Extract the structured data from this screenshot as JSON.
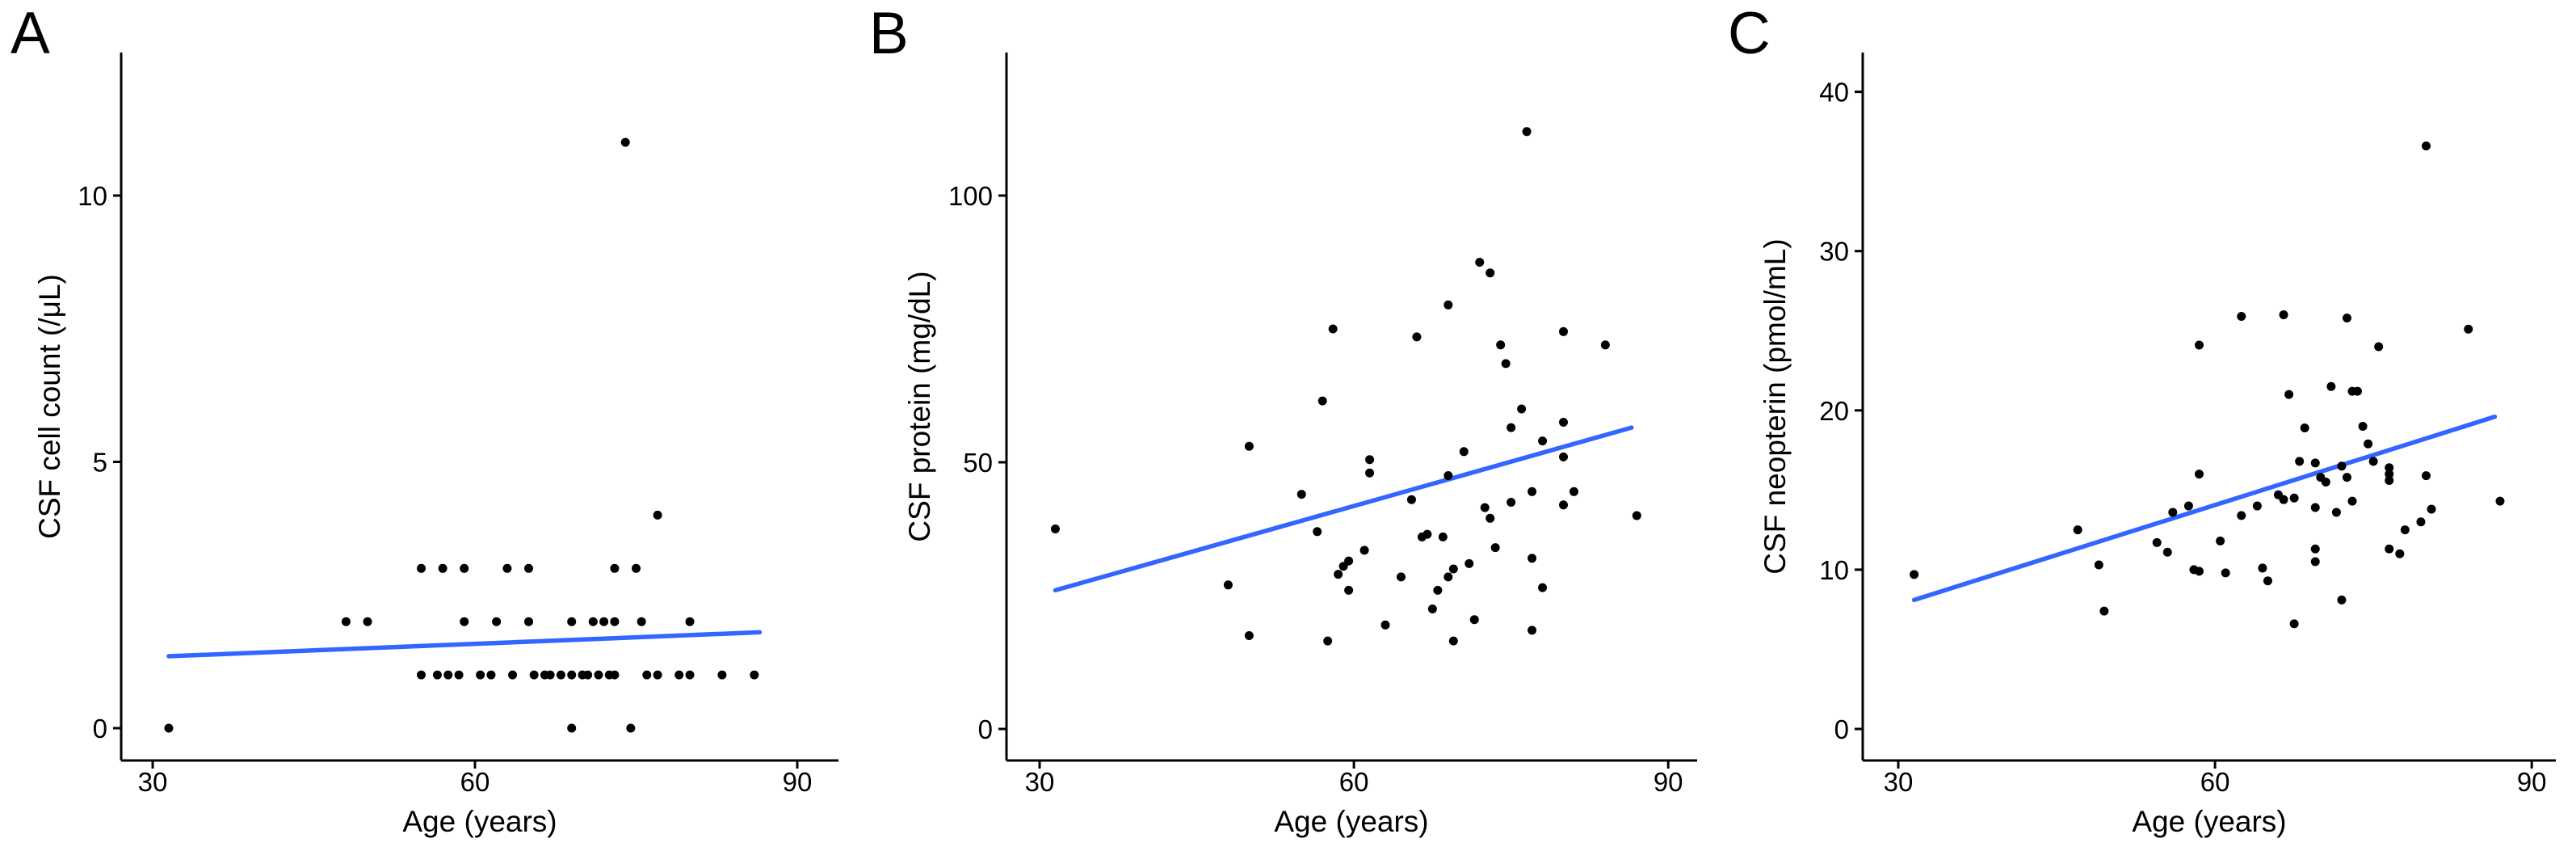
{
  "figure": {
    "colors": {
      "trend_line": "#3366FF",
      "point": "#000000",
      "axis": "#000000",
      "background": "#FFFFFF",
      "text": "#000000"
    }
  },
  "chart_data": [
    {
      "type": "scatter",
      "panel_label": "A",
      "ylabel": "CSF cell count (/μL)",
      "xlabel": "Age (years)",
      "x_ticks": [
        30,
        60,
        90
      ],
      "y_ticks": [
        0,
        5,
        10
      ],
      "xlim": [
        27,
        92
      ],
      "ylim": [
        -0.7,
        12.7
      ],
      "grid": false,
      "legend": "none",
      "trend_line": {
        "x1": 31.5,
        "y1": 1.35,
        "x2": 86.5,
        "y2": 1.8
      },
      "points": [
        [
          31.5,
          0
        ],
        [
          69,
          0
        ],
        [
          74.5,
          0
        ],
        [
          55,
          1
        ],
        [
          56.5,
          1
        ],
        [
          57.5,
          1
        ],
        [
          58.5,
          1
        ],
        [
          60.5,
          1
        ],
        [
          61.5,
          1
        ],
        [
          63.5,
          1
        ],
        [
          65.5,
          1
        ],
        [
          66.5,
          1
        ],
        [
          67,
          1
        ],
        [
          68,
          1
        ],
        [
          69,
          1
        ],
        [
          70,
          1
        ],
        [
          70.5,
          1
        ],
        [
          71.5,
          1
        ],
        [
          72.5,
          1
        ],
        [
          73,
          1
        ],
        [
          76,
          1
        ],
        [
          77,
          1
        ],
        [
          79,
          1
        ],
        [
          80,
          1
        ],
        [
          83,
          1
        ],
        [
          86,
          1
        ],
        [
          48,
          2
        ],
        [
          50,
          2
        ],
        [
          59,
          2
        ],
        [
          62,
          2
        ],
        [
          65,
          2
        ],
        [
          69,
          2
        ],
        [
          71,
          2
        ],
        [
          72,
          2
        ],
        [
          73,
          2
        ],
        [
          75.5,
          2
        ],
        [
          80,
          2
        ],
        [
          55,
          3
        ],
        [
          57,
          3
        ],
        [
          59,
          3
        ],
        [
          63,
          3
        ],
        [
          65,
          3
        ],
        [
          73,
          3
        ],
        [
          75,
          3
        ],
        [
          77,
          4
        ],
        [
          74,
          11
        ]
      ]
    },
    {
      "type": "scatter",
      "panel_label": "B",
      "ylabel": "CSF protein (mg/dL)",
      "xlabel": "Age (years)",
      "x_ticks": [
        30,
        60,
        90
      ],
      "y_ticks": [
        0,
        50,
        100
      ],
      "xlim": [
        27,
        92
      ],
      "ylim": [
        -8,
        118
      ],
      "grid": false,
      "legend": "none",
      "trend_line": {
        "x1": 31.5,
        "y1": 26,
        "x2": 86.5,
        "y2": 56.5
      },
      "points": [
        [
          31.5,
          37.5
        ],
        [
          48,
          27
        ],
        [
          50,
          53
        ],
        [
          50,
          17.5
        ],
        [
          55,
          44
        ],
        [
          56.5,
          37
        ],
        [
          57,
          61.5
        ],
        [
          57.5,
          16.5
        ],
        [
          58,
          75
        ],
        [
          58.5,
          29
        ],
        [
          59,
          30.5
        ],
        [
          59.5,
          26
        ],
        [
          59.5,
          31.5
        ],
        [
          61,
          33.5
        ],
        [
          61.5,
          50.5
        ],
        [
          61.5,
          48
        ],
        [
          63,
          19.5
        ],
        [
          64.5,
          28.5
        ],
        [
          65.5,
          43
        ],
        [
          66,
          73.5
        ],
        [
          66.5,
          36
        ],
        [
          67,
          36.5
        ],
        [
          67.5,
          22.5
        ],
        [
          68,
          26
        ],
        [
          68.5,
          36
        ],
        [
          69,
          28.5
        ],
        [
          69,
          79.5
        ],
        [
          69,
          47.5
        ],
        [
          69.5,
          30
        ],
        [
          69.5,
          16.5
        ],
        [
          70.5,
          52
        ],
        [
          71,
          31
        ],
        [
          71.5,
          20.5
        ],
        [
          72,
          87.5
        ],
        [
          72.5,
          41.5
        ],
        [
          73,
          85.5
        ],
        [
          73,
          39.5
        ],
        [
          73.5,
          34
        ],
        [
          74,
          72
        ],
        [
          74.5,
          68.5
        ],
        [
          75,
          56.5
        ],
        [
          75,
          42.5
        ],
        [
          76,
          60
        ],
        [
          76.5,
          112
        ],
        [
          77,
          44.5
        ],
        [
          77,
          32
        ],
        [
          77,
          18.5
        ],
        [
          78,
          54
        ],
        [
          78,
          26.5
        ],
        [
          80,
          74.5
        ],
        [
          80,
          57.5
        ],
        [
          80,
          51
        ],
        [
          80,
          42
        ],
        [
          81,
          44.5
        ],
        [
          84,
          72
        ],
        [
          87,
          40
        ]
      ]
    },
    {
      "type": "scatter",
      "panel_label": "C",
      "ylabel": "CSF neopterin (pmol/mL)",
      "xlabel": "Age (years)",
      "x_ticks": [
        30,
        60,
        90
      ],
      "y_ticks": [
        0,
        10,
        20,
        30,
        40
      ],
      "xlim": [
        27,
        92
      ],
      "ylim": [
        -3,
        42
      ],
      "grid": false,
      "legend": "none",
      "trend_line": {
        "x1": 31.5,
        "y1": 8.1,
        "x2": 86.5,
        "y2": 19.6
      },
      "points": [
        [
          31.5,
          9.7
        ],
        [
          47,
          12.5
        ],
        [
          49,
          10.3
        ],
        [
          49.5,
          7.4
        ],
        [
          54.5,
          11.7
        ],
        [
          55.5,
          11.1
        ],
        [
          56,
          13.6
        ],
        [
          57.5,
          14.0
        ],
        [
          58,
          10.0
        ],
        [
          58.5,
          16.0
        ],
        [
          58.5,
          9.9
        ],
        [
          58.5,
          24.1
        ],
        [
          60.5,
          11.8
        ],
        [
          61,
          9.8
        ],
        [
          62.5,
          13.4
        ],
        [
          62.5,
          25.9
        ],
        [
          64,
          14.0
        ],
        [
          64.5,
          10.1
        ],
        [
          65,
          9.3
        ],
        [
          66,
          14.7
        ],
        [
          66.5,
          14.4
        ],
        [
          66.5,
          26.0
        ],
        [
          67,
          21.0
        ],
        [
          67.5,
          14.5
        ],
        [
          67.5,
          6.6
        ],
        [
          68,
          16.8
        ],
        [
          68.5,
          18.9
        ],
        [
          69.5,
          16.7
        ],
        [
          69.5,
          13.9
        ],
        [
          69.5,
          11.3
        ],
        [
          69.5,
          10.5
        ],
        [
          70,
          15.8
        ],
        [
          70.5,
          15.5
        ],
        [
          71,
          21.5
        ],
        [
          71.5,
          13.6
        ],
        [
          72,
          8.1
        ],
        [
          72,
          16.5
        ],
        [
          72.5,
          15.8
        ],
        [
          72.5,
          25.8
        ],
        [
          73,
          14.3
        ],
        [
          73,
          21.2
        ],
        [
          73.5,
          21.2
        ],
        [
          74,
          19.0
        ],
        [
          74.5,
          17.9
        ],
        [
          75,
          16.8
        ],
        [
          75.5,
          24.0
        ],
        [
          76.5,
          16.4
        ],
        [
          76.5,
          16.0
        ],
        [
          76.5,
          15.6
        ],
        [
          76.5,
          11.3
        ],
        [
          77.5,
          11.0
        ],
        [
          78,
          12.5
        ],
        [
          79.5,
          13.0
        ],
        [
          80,
          36.6
        ],
        [
          80,
          15.9
        ],
        [
          80.5,
          13.8
        ],
        [
          84,
          25.1
        ],
        [
          87,
          14.3
        ]
      ]
    }
  ]
}
